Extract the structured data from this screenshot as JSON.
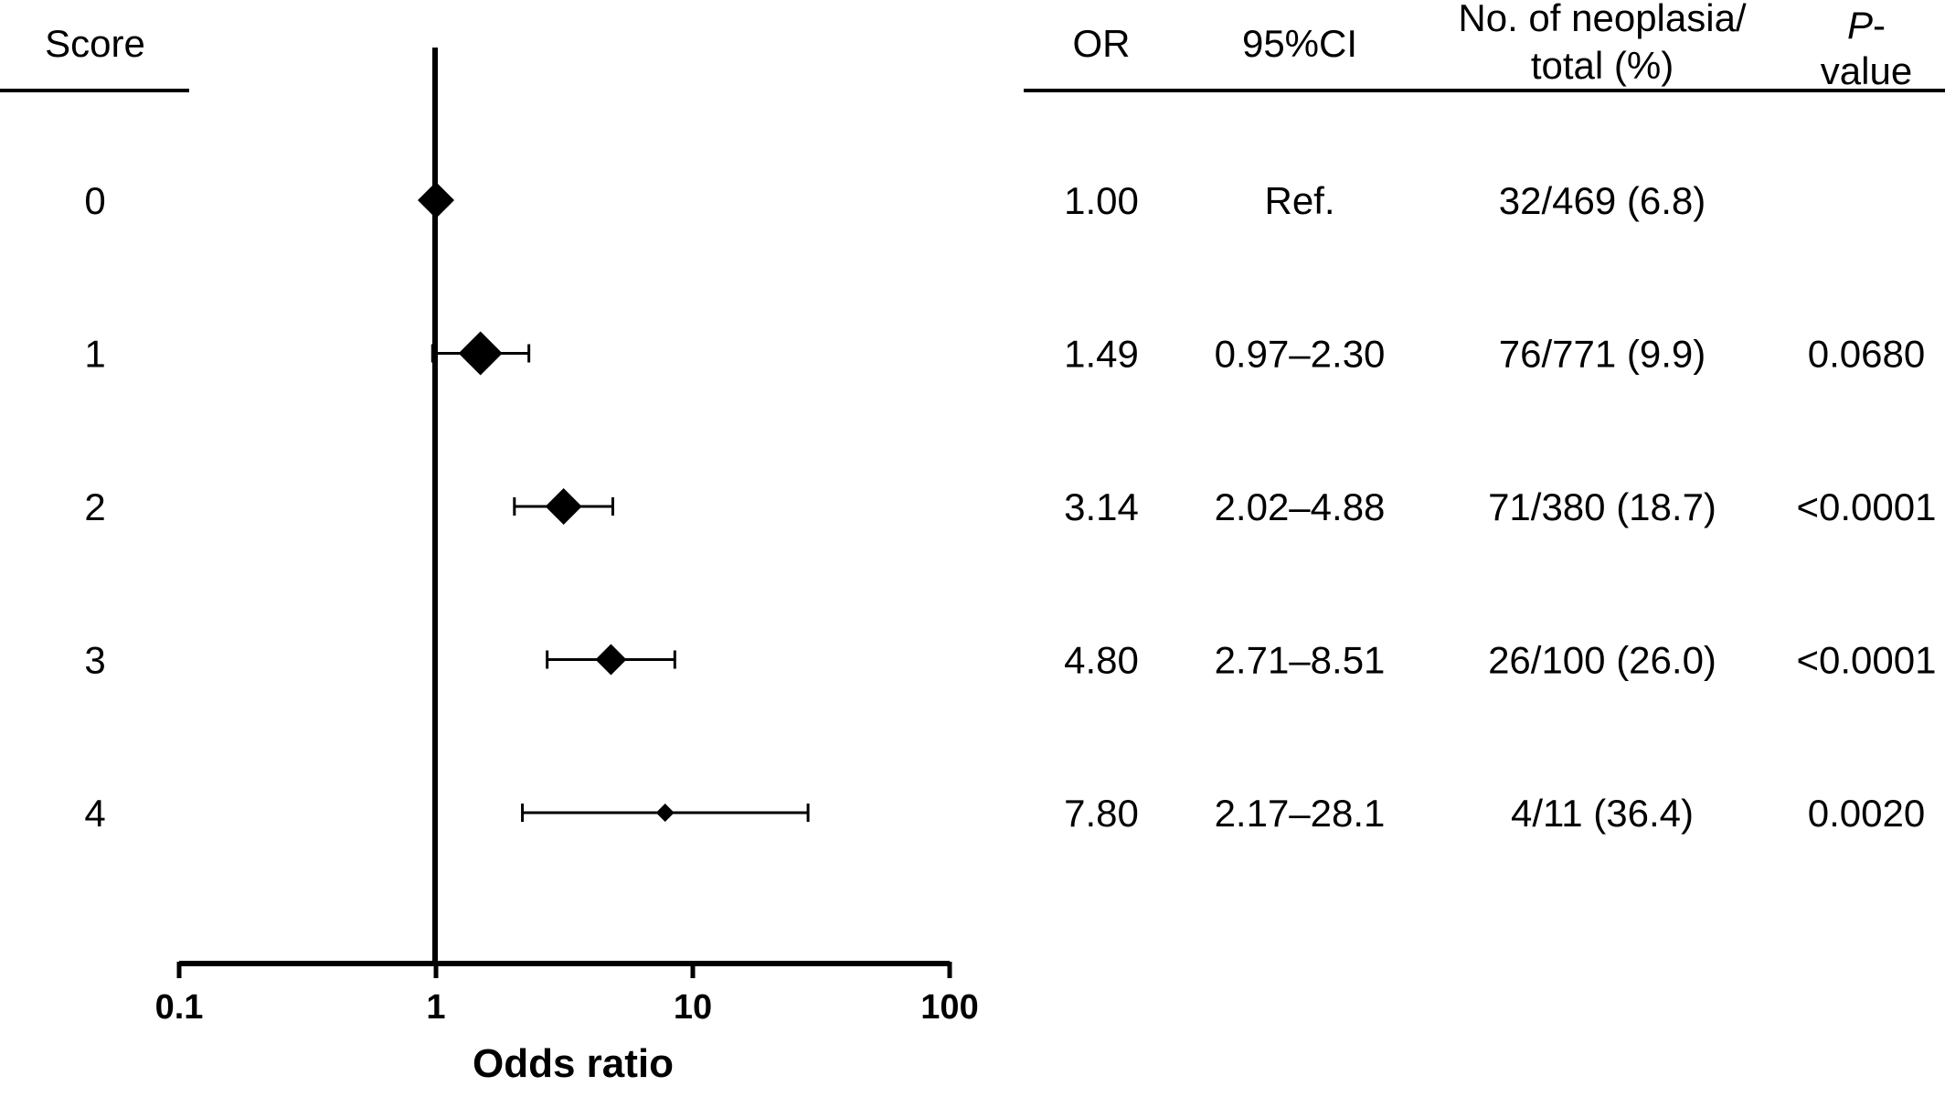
{
  "chart_data": {
    "type": "forest",
    "xlabel": "Odds ratio",
    "x_scale": "log",
    "xlim": [
      0.1,
      100
    ],
    "x_ticks": [
      "0.1",
      "1",
      "10",
      "100"
    ],
    "reference_line": 1,
    "headers": {
      "score": "Score",
      "or": "OR",
      "ci": "95%CI",
      "count_line1": "No. of neoplasia/",
      "count_line2": "total (%)",
      "p_line1": "P",
      "p_line1_suffix": "-",
      "p_line2": "value"
    },
    "rows": [
      {
        "score": "0",
        "or_value": 1.0,
        "ci_low": null,
        "ci_high": null,
        "or_text": "1.00",
        "ci_text": "Ref.",
        "count_text": "32/469 (6.8)",
        "p_text": ""
      },
      {
        "score": "1",
        "or_value": 1.49,
        "ci_low": 0.97,
        "ci_high": 2.3,
        "or_text": "1.49",
        "ci_text": "0.97–2.30",
        "count_text": "76/771 (9.9)",
        "p_text": "0.0680"
      },
      {
        "score": "2",
        "or_value": 3.14,
        "ci_low": 2.02,
        "ci_high": 4.88,
        "or_text": "3.14",
        "ci_text": "2.02–4.88",
        "count_text": "71/380 (18.7)",
        "p_text": "<0.0001"
      },
      {
        "score": "3",
        "or_value": 4.8,
        "ci_low": 2.71,
        "ci_high": 8.51,
        "or_text": "4.80",
        "ci_text": "2.71–8.51",
        "count_text": "26/100 (26.0)",
        "p_text": "<0.0001"
      },
      {
        "score": "4",
        "or_value": 7.8,
        "ci_low": 2.17,
        "ci_high": 28.1,
        "or_text": "7.80",
        "ci_text": "2.17–28.1",
        "count_text": "4/11 (36.4)",
        "p_text": "0.0020"
      }
    ]
  }
}
